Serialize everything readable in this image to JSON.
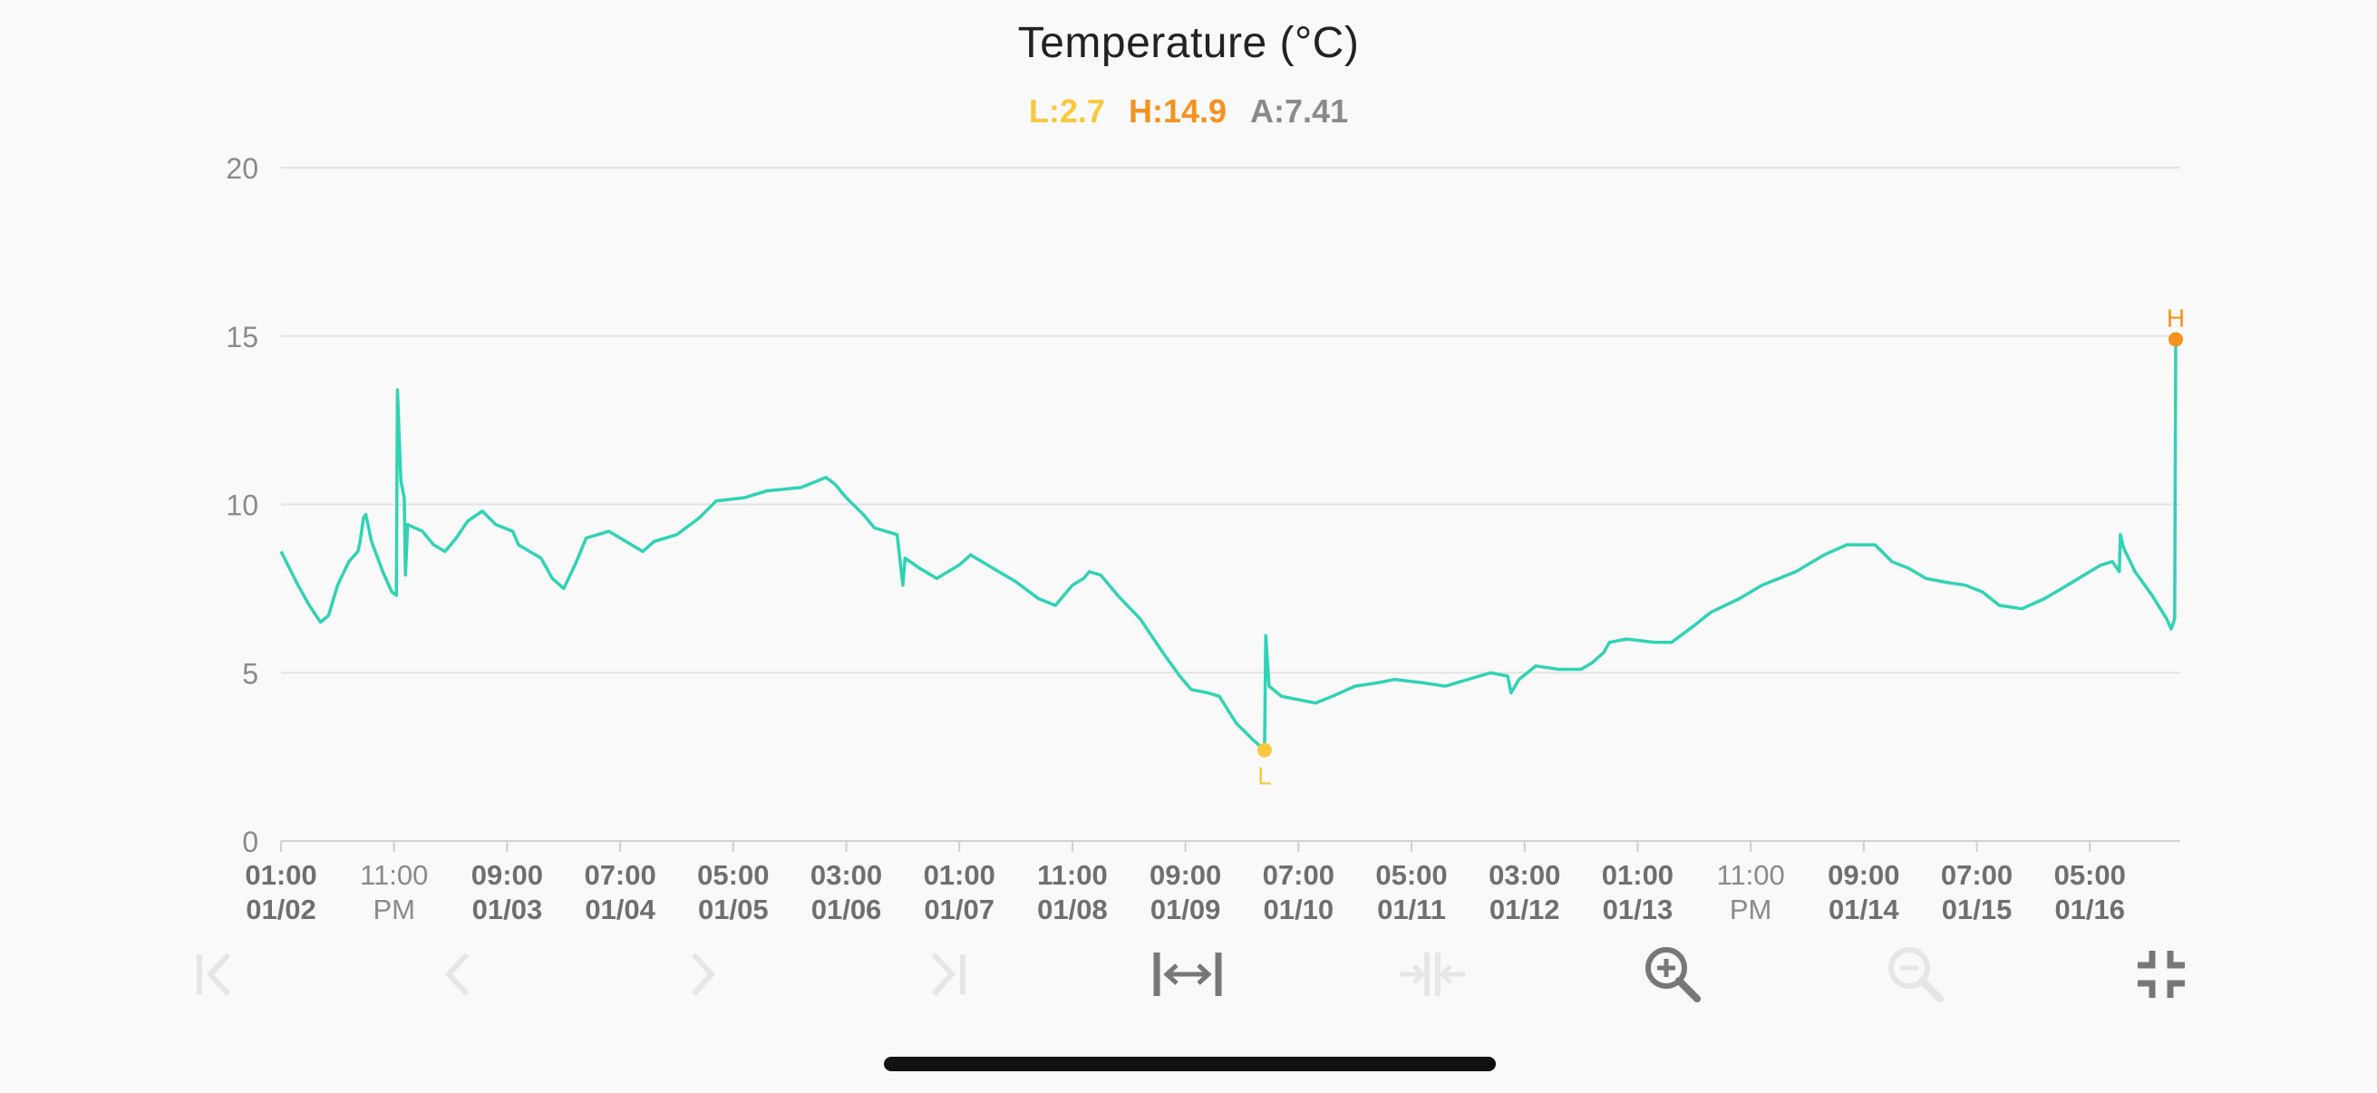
{
  "chart_data": {
    "type": "line",
    "title": "Temperature (°C)",
    "stats": {
      "low": "L:2.7",
      "high": "H:14.9",
      "avg": "A:7.41"
    },
    "markers": {
      "low": {
        "label": "L",
        "value": 2.7
      },
      "high": {
        "label": "H",
        "value": 14.9
      }
    },
    "ylim": [
      0,
      20
    ],
    "yticks": [
      0,
      5,
      10,
      15,
      20
    ],
    "xlim": [
      0,
      16.8
    ],
    "xticks": [
      {
        "x": 0.0,
        "line1": "01:00",
        "line2": "01/02"
      },
      {
        "x": 1.0,
        "line1": "11:00",
        "line2": "PM"
      },
      {
        "x": 2.0,
        "line1": "09:00",
        "line2": "01/03"
      },
      {
        "x": 3.0,
        "line1": "07:00",
        "line2": "01/04"
      },
      {
        "x": 4.0,
        "line1": "05:00",
        "line2": "01/05"
      },
      {
        "x": 5.0,
        "line1": "03:00",
        "line2": "01/06"
      },
      {
        "x": 6.0,
        "line1": "01:00",
        "line2": "01/07"
      },
      {
        "x": 7.0,
        "line1": "11:00",
        "line2": "01/08"
      },
      {
        "x": 8.0,
        "line1": "09:00",
        "line2": "01/09"
      },
      {
        "x": 9.0,
        "line1": "07:00",
        "line2": "01/10"
      },
      {
        "x": 10.0,
        "line1": "05:00",
        "line2": "01/11"
      },
      {
        "x": 11.0,
        "line1": "03:00",
        "line2": "01/12"
      },
      {
        "x": 12.0,
        "line1": "01:00",
        "line2": "01/13"
      },
      {
        "x": 13.0,
        "line1": "11:00",
        "line2": "PM"
      },
      {
        "x": 14.0,
        "line1": "09:00",
        "line2": "01/14"
      },
      {
        "x": 15.0,
        "line1": "07:00",
        "line2": "01/15"
      },
      {
        "x": 16.0,
        "line1": "05:00",
        "line2": "01/16"
      }
    ],
    "series": [
      {
        "color": "#2fd3b4",
        "points": [
          [
            0.0,
            8.6
          ],
          [
            0.15,
            7.6
          ],
          [
            0.25,
            7.0
          ],
          [
            0.35,
            6.5
          ],
          [
            0.42,
            6.7
          ],
          [
            0.5,
            7.6
          ],
          [
            0.6,
            8.3
          ],
          [
            0.68,
            8.6
          ],
          [
            0.7,
            8.9
          ],
          [
            0.73,
            9.6
          ],
          [
            0.75,
            9.7
          ],
          [
            0.8,
            8.9
          ],
          [
            0.9,
            8.0
          ],
          [
            0.98,
            7.4
          ],
          [
            1.02,
            7.3
          ],
          [
            1.03,
            13.4
          ],
          [
            1.06,
            10.7
          ],
          [
            1.09,
            10.2
          ],
          [
            1.1,
            7.9
          ],
          [
            1.12,
            9.4
          ],
          [
            1.25,
            9.2
          ],
          [
            1.35,
            8.8
          ],
          [
            1.45,
            8.6
          ],
          [
            1.55,
            9.0
          ],
          [
            1.65,
            9.5
          ],
          [
            1.78,
            9.8
          ],
          [
            1.9,
            9.4
          ],
          [
            2.05,
            9.2
          ],
          [
            2.1,
            8.8
          ],
          [
            2.2,
            8.6
          ],
          [
            2.3,
            8.4
          ],
          [
            2.4,
            7.8
          ],
          [
            2.5,
            7.5
          ],
          [
            2.6,
            8.2
          ],
          [
            2.7,
            9.0
          ],
          [
            2.8,
            9.1
          ],
          [
            2.9,
            9.2
          ],
          [
            3.0,
            9.0
          ],
          [
            3.1,
            8.8
          ],
          [
            3.2,
            8.6
          ],
          [
            3.3,
            8.9
          ],
          [
            3.5,
            9.1
          ],
          [
            3.7,
            9.6
          ],
          [
            3.85,
            10.1
          ],
          [
            4.1,
            10.2
          ],
          [
            4.3,
            10.4
          ],
          [
            4.6,
            10.5
          ],
          [
            4.82,
            10.8
          ],
          [
            4.9,
            10.6
          ],
          [
            5.0,
            10.2
          ],
          [
            5.15,
            9.7
          ],
          [
            5.25,
            9.3
          ],
          [
            5.35,
            9.2
          ],
          [
            5.45,
            9.1
          ],
          [
            5.5,
            7.6
          ],
          [
            5.52,
            8.4
          ],
          [
            5.65,
            8.1
          ],
          [
            5.8,
            7.8
          ],
          [
            6.0,
            8.2
          ],
          [
            6.1,
            8.5
          ],
          [
            6.3,
            8.1
          ],
          [
            6.5,
            7.7
          ],
          [
            6.7,
            7.2
          ],
          [
            6.85,
            7.0
          ],
          [
            7.0,
            7.6
          ],
          [
            7.1,
            7.8
          ],
          [
            7.15,
            8.0
          ],
          [
            7.25,
            7.9
          ],
          [
            7.4,
            7.3
          ],
          [
            7.6,
            6.6
          ],
          [
            7.8,
            5.6
          ],
          [
            7.95,
            4.9
          ],
          [
            8.05,
            4.5
          ],
          [
            8.2,
            4.4
          ],
          [
            8.3,
            4.3
          ],
          [
            8.45,
            3.5
          ],
          [
            8.6,
            3.0
          ],
          [
            8.7,
            2.7
          ],
          [
            8.71,
            6.1
          ],
          [
            8.74,
            4.6
          ],
          [
            8.85,
            4.3
          ],
          [
            9.0,
            4.2
          ],
          [
            9.15,
            4.1
          ],
          [
            9.3,
            4.3
          ],
          [
            9.5,
            4.6
          ],
          [
            9.7,
            4.7
          ],
          [
            9.85,
            4.8
          ],
          [
            10.1,
            4.7
          ],
          [
            10.3,
            4.6
          ],
          [
            10.5,
            4.8
          ],
          [
            10.7,
            5.0
          ],
          [
            10.85,
            4.9
          ],
          [
            10.88,
            4.4
          ],
          [
            10.95,
            4.8
          ],
          [
            11.1,
            5.2
          ],
          [
            11.3,
            5.1
          ],
          [
            11.5,
            5.1
          ],
          [
            11.6,
            5.3
          ],
          [
            11.7,
            5.6
          ],
          [
            11.75,
            5.9
          ],
          [
            11.9,
            6.0
          ],
          [
            12.15,
            5.9
          ],
          [
            12.3,
            5.9
          ],
          [
            12.5,
            6.4
          ],
          [
            12.65,
            6.8
          ],
          [
            12.9,
            7.2
          ],
          [
            13.1,
            7.6
          ],
          [
            13.4,
            8.0
          ],
          [
            13.65,
            8.5
          ],
          [
            13.85,
            8.8
          ],
          [
            14.1,
            8.8
          ],
          [
            14.25,
            8.3
          ],
          [
            14.4,
            8.1
          ],
          [
            14.55,
            7.8
          ],
          [
            14.7,
            7.7
          ],
          [
            14.9,
            7.6
          ],
          [
            15.05,
            7.4
          ],
          [
            15.2,
            7.0
          ],
          [
            15.4,
            6.9
          ],
          [
            15.6,
            7.2
          ],
          [
            15.8,
            7.6
          ],
          [
            16.0,
            8.0
          ],
          [
            16.1,
            8.2
          ],
          [
            16.2,
            8.3
          ],
          [
            16.26,
            8.0
          ],
          [
            16.27,
            9.1
          ],
          [
            16.3,
            8.7
          ],
          [
            16.4,
            8.0
          ],
          [
            16.55,
            7.3
          ],
          [
            16.68,
            6.6
          ],
          [
            16.72,
            6.3
          ],
          [
            16.75,
            6.6
          ],
          [
            16.76,
            14.9
          ]
        ]
      }
    ],
    "grid": true,
    "legend": "none"
  },
  "colors": {
    "low": "#f9c93d",
    "high": "#f5921e",
    "avg": "#8a8a8a",
    "line": "#2fd3b4",
    "grid": "#e3e3e3"
  },
  "toolbar": [
    {
      "name": "go-first-icon",
      "enabled": false
    },
    {
      "name": "previous-icon",
      "enabled": false
    },
    {
      "name": "next-icon",
      "enabled": false
    },
    {
      "name": "go-last-icon",
      "enabled": false
    },
    {
      "name": "fit-width-icon",
      "enabled": true
    },
    {
      "name": "shrink-width-icon",
      "enabled": false
    },
    {
      "name": "zoom-in-icon",
      "enabled": true
    },
    {
      "name": "zoom-out-icon",
      "enabled": false
    },
    {
      "name": "exit-fullscreen-icon",
      "enabled": true
    }
  ]
}
